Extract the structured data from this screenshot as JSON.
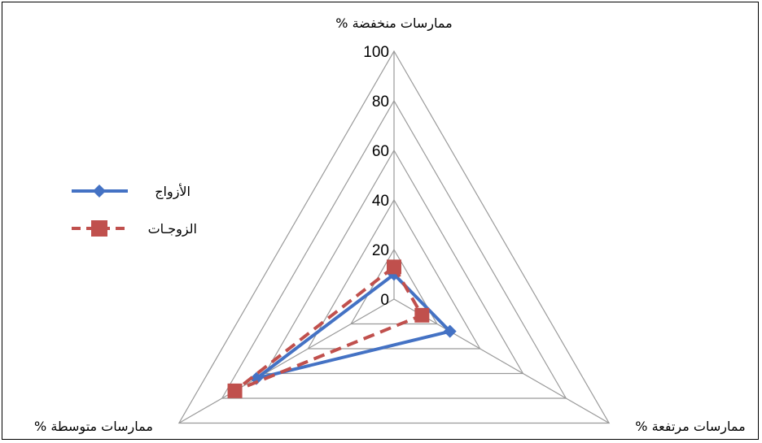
{
  "chart_data": {
    "type": "radar",
    "axes": [
      "ممارسات منخفضة %",
      "ممارسات مرتفعة %",
      "ممارسات متوسطة %"
    ],
    "rlim": [
      0,
      100
    ],
    "ticks": [
      "0",
      "20",
      "40",
      "60",
      "80",
      "100"
    ],
    "grid": true,
    "legend_position": "left",
    "series": [
      {
        "name": "الأزواج",
        "values": [
          10,
          26,
          64
        ],
        "color": "#4472C4",
        "marker": "diamond",
        "line_style": "solid"
      },
      {
        "name": "الزوجـات",
        "values": [
          13,
          13,
          74
        ],
        "color": "#C0504D",
        "marker": "square",
        "line_style": "dashed"
      }
    ]
  }
}
